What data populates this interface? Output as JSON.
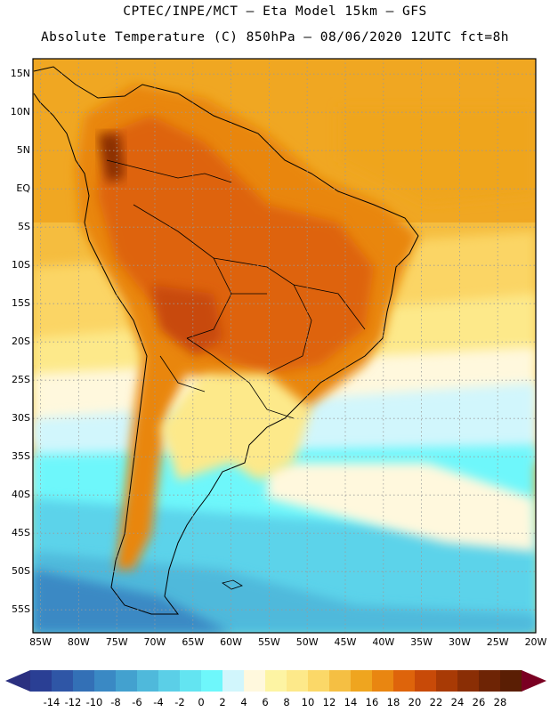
{
  "header": {
    "line1": "CPTEC/INPE/MCT –  Eta Model 15km – GFS",
    "line2": "Absolute Temperature (C) 850hPa – 08/06/2020 12UTC fct=8h"
  },
  "map": {
    "lat_labels": [
      "15N",
      "10N",
      "5N",
      "EQ",
      "5S",
      "10S",
      "15S",
      "20S",
      "25S",
      "30S",
      "35S",
      "40S",
      "45S",
      "50S",
      "55S"
    ],
    "lon_labels": [
      "85W",
      "80W",
      "75W",
      "70W",
      "65W",
      "60W",
      "55W",
      "50W",
      "45W",
      "40W",
      "35W",
      "30W",
      "25W",
      "20W"
    ],
    "lat_range": [
      17,
      -58
    ],
    "lon_range": [
      -86,
      -20
    ],
    "gridlines": true
  },
  "colorbar": {
    "ticks": [
      "-14",
      "-12",
      "-10",
      "-8",
      "-6",
      "-4",
      "-2",
      "0",
      "2",
      "4",
      "6",
      "8",
      "10",
      "12",
      "14",
      "16",
      "18",
      "20",
      "22",
      "24",
      "26",
      "28"
    ],
    "colors": [
      "#2a3f94",
      "#2f56a6",
      "#3370b6",
      "#3a89c4",
      "#43a1cf",
      "#4fb9db",
      "#5bcfe7",
      "#63e4f1",
      "#6ef7fb",
      "#d1f6fc",
      "#fff8dd",
      "#fdf4a3",
      "#fde98a",
      "#fbd868",
      "#f5bf43",
      "#efa51f",
      "#e98611",
      "#de640b",
      "#c84a08",
      "#a83a05",
      "#8a2e05",
      "#6e2405",
      "#5a1e04"
    ],
    "low_arrow_color": "#2b3080",
    "high_arrow_color": "#7a0022"
  }
}
